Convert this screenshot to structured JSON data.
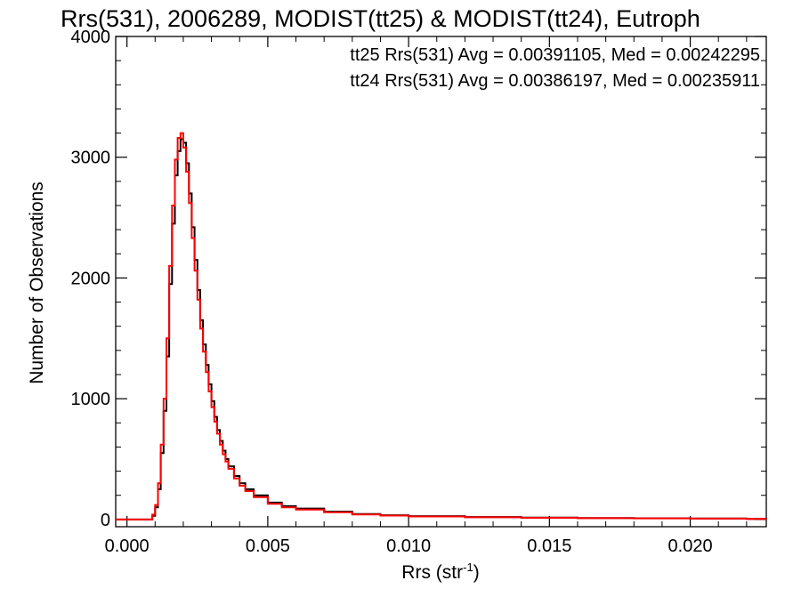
{
  "chart_data": {
    "type": "line",
    "title": "Rrs(531), 2006289, MODIST(tt25) & MODIST(tt24), Eutroph",
    "xlabel": "Rrs (str",
    "xlabel_superscript": "-1",
    "xlabel_suffix": ")",
    "ylabel": "Number of Observations",
    "xlim": [
      -0.0004,
      0.0227
    ],
    "ylim": [
      -60,
      4000
    ],
    "xticks": [
      0.0,
      0.005,
      0.01,
      0.015,
      0.02
    ],
    "xtick_labels": [
      "0.000",
      "0.005",
      "0.010",
      "0.015",
      "0.020"
    ],
    "yticks": [
      0,
      1000,
      2000,
      3000,
      4000
    ],
    "ytick_labels": [
      "0",
      "1000",
      "2000",
      "3000",
      "4000"
    ],
    "grid": false,
    "legend_position": "top-right",
    "annotations": [
      {
        "text": "tt25 Rrs(531) Avg = 0.00391105, Med = 0.00242295",
        "color": "#000000"
      },
      {
        "text": "tt24 Rrs(531) Avg = 0.00386197, Med = 0.00235911",
        "color": "#ff0000"
      }
    ],
    "series": [
      {
        "color": "#000000",
        "x": [
          -0.0004,
          0.0008,
          0.0009,
          0.001,
          0.0011,
          0.0012,
          0.0013,
          0.0014,
          0.0015,
          0.0016,
          0.0017,
          0.0018,
          0.0019,
          0.002,
          0.0021,
          0.0022,
          0.0023,
          0.0024,
          0.0025,
          0.0026,
          0.0027,
          0.0028,
          0.0029,
          0.003,
          0.0031,
          0.0032,
          0.0033,
          0.0034,
          0.0035,
          0.0036,
          0.0038,
          0.004,
          0.0042,
          0.0045,
          0.005,
          0.0055,
          0.006,
          0.007,
          0.008,
          0.009,
          0.01,
          0.012,
          0.014,
          0.016,
          0.018,
          0.02,
          0.022,
          0.0227
        ],
        "y": [
          0,
          0,
          30,
          100,
          250,
          550,
          900,
          1350,
          1950,
          2450,
          2850,
          3050,
          3150,
          3120,
          2950,
          2700,
          2420,
          2150,
          1900,
          1650,
          1450,
          1280,
          1120,
          980,
          850,
          740,
          650,
          570,
          500,
          440,
          360,
          300,
          250,
          200,
          140,
          110,
          90,
          65,
          45,
          35,
          28,
          20,
          15,
          12,
          10,
          8,
          5,
          4
        ]
      },
      {
        "color": "#ff0000",
        "x": [
          -0.0004,
          0.0008,
          0.0009,
          0.001,
          0.0011,
          0.0012,
          0.0013,
          0.0014,
          0.0015,
          0.0016,
          0.0017,
          0.0018,
          0.0019,
          0.002,
          0.0021,
          0.0022,
          0.0023,
          0.0024,
          0.0025,
          0.0026,
          0.0027,
          0.0028,
          0.0029,
          0.003,
          0.0031,
          0.0032,
          0.0033,
          0.0034,
          0.0035,
          0.0036,
          0.0038,
          0.004,
          0.0042,
          0.0045,
          0.005,
          0.0055,
          0.006,
          0.007,
          0.008,
          0.009,
          0.01,
          0.012,
          0.014,
          0.016,
          0.018,
          0.02,
          0.022,
          0.0227
        ],
        "y": [
          0,
          0,
          40,
          120,
          300,
          620,
          1000,
          1500,
          2100,
          2600,
          2980,
          3160,
          3200,
          3080,
          2880,
          2620,
          2330,
          2060,
          1820,
          1580,
          1390,
          1220,
          1060,
          930,
          810,
          710,
          620,
          540,
          480,
          420,
          340,
          280,
          235,
          185,
          130,
          100,
          82,
          60,
          42,
          32,
          25,
          18,
          14,
          11,
          9,
          7,
          5,
          4
        ]
      }
    ]
  }
}
